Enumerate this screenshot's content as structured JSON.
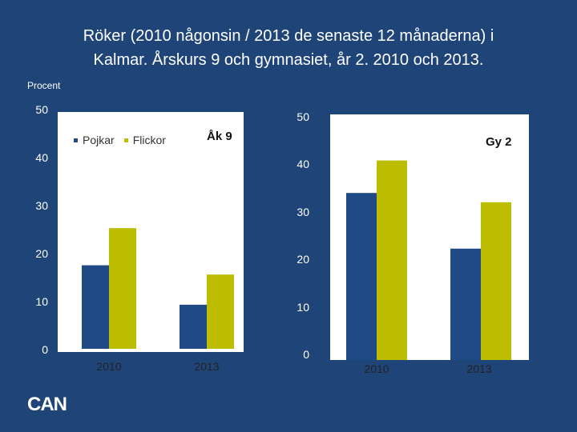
{
  "slide": {
    "title_line1": "Röker (2010 någonsin / 2013 de senaste 12 månaderna) i",
    "title_line2": "Kalmar. Årskurs 9 och gymnasiet, år 2. 2010 och 2013.",
    "unit_label": "Procent",
    "logo_text": "CAN"
  },
  "legend": {
    "pojkar": "Pojkar",
    "flickor": "Flickor"
  },
  "colors": {
    "pojkar": "#1f4a85",
    "flickor": "#bcbc00",
    "background": "#1f4578"
  },
  "chart_data": [
    {
      "type": "bar",
      "title": "Åk 9",
      "categories": [
        "2010",
        "2013"
      ],
      "series": [
        {
          "name": "Pojkar",
          "values": [
            18,
            9.5
          ]
        },
        {
          "name": "Flickor",
          "values": [
            26,
            16
          ]
        }
      ],
      "yticks": [
        "0",
        "10",
        "20",
        "30",
        "40",
        "50"
      ],
      "ylim": [
        0,
        50
      ],
      "ylabel": "Procent",
      "legend_position": "top-left"
    },
    {
      "type": "bar",
      "title": "Gy 2",
      "categories": [
        "2010",
        "2013"
      ],
      "series": [
        {
          "name": "Pojkar",
          "values": [
            36,
            24
          ]
        },
        {
          "name": "Flickor",
          "values": [
            43,
            34
          ]
        }
      ],
      "yticks": [
        "0",
        "10",
        "20",
        "30",
        "40",
        "50"
      ],
      "ylim": [
        0,
        50
      ],
      "ylabel": "Procent"
    }
  ]
}
